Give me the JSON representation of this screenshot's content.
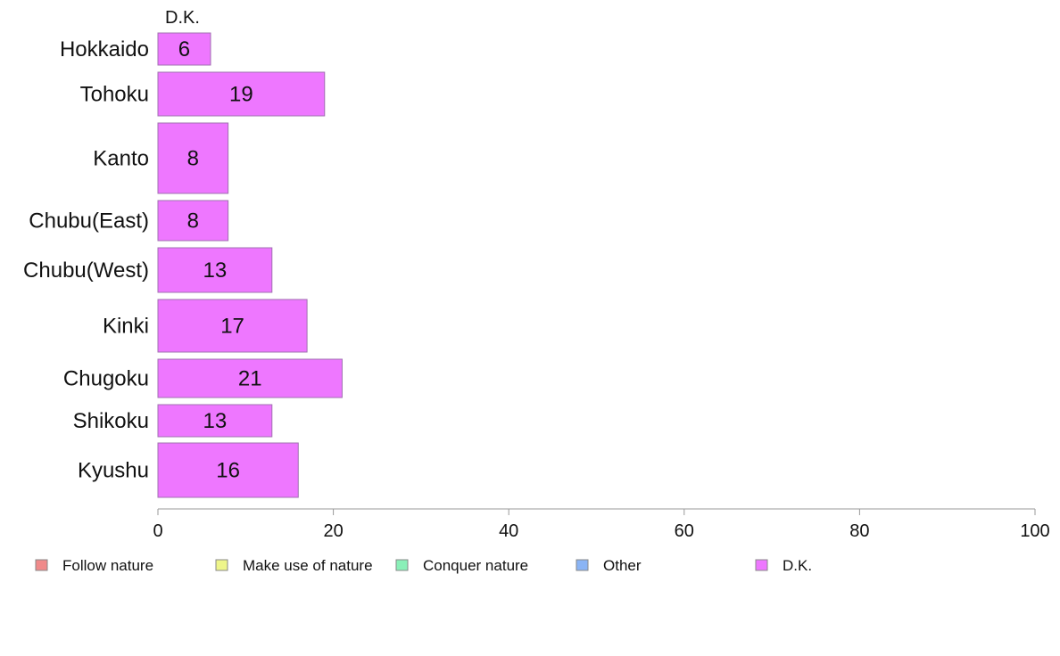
{
  "chart_data": {
    "type": "bar",
    "orientation": "horizontal",
    "series_header": "D.K.",
    "categories": [
      "Hokkaido",
      "Tohoku",
      "Kanto",
      "Chubu(East)",
      "Chubu(West)",
      "Kinki",
      "Chugoku",
      "Shikoku",
      "Kyushu"
    ],
    "series": [
      {
        "name": "D.K.",
        "color": "#ee77ff",
        "values": [
          6,
          19,
          8,
          8,
          13,
          17,
          21,
          13,
          16
        ]
      }
    ],
    "xlim": [
      0,
      100
    ],
    "xticks": [
      0,
      20,
      40,
      60,
      80,
      100
    ],
    "grid": false,
    "legend": {
      "position": "bottom",
      "items": [
        {
          "label": "Follow nature",
          "color": "#f08a8a"
        },
        {
          "label": "Make use of nature",
          "color": "#eef58a"
        },
        {
          "label": "Conquer nature",
          "color": "#8af0b8"
        },
        {
          "label": "Other",
          "color": "#8ab4f5"
        },
        {
          "label": "D.K.",
          "color": "#ee77ff"
        }
      ]
    }
  }
}
